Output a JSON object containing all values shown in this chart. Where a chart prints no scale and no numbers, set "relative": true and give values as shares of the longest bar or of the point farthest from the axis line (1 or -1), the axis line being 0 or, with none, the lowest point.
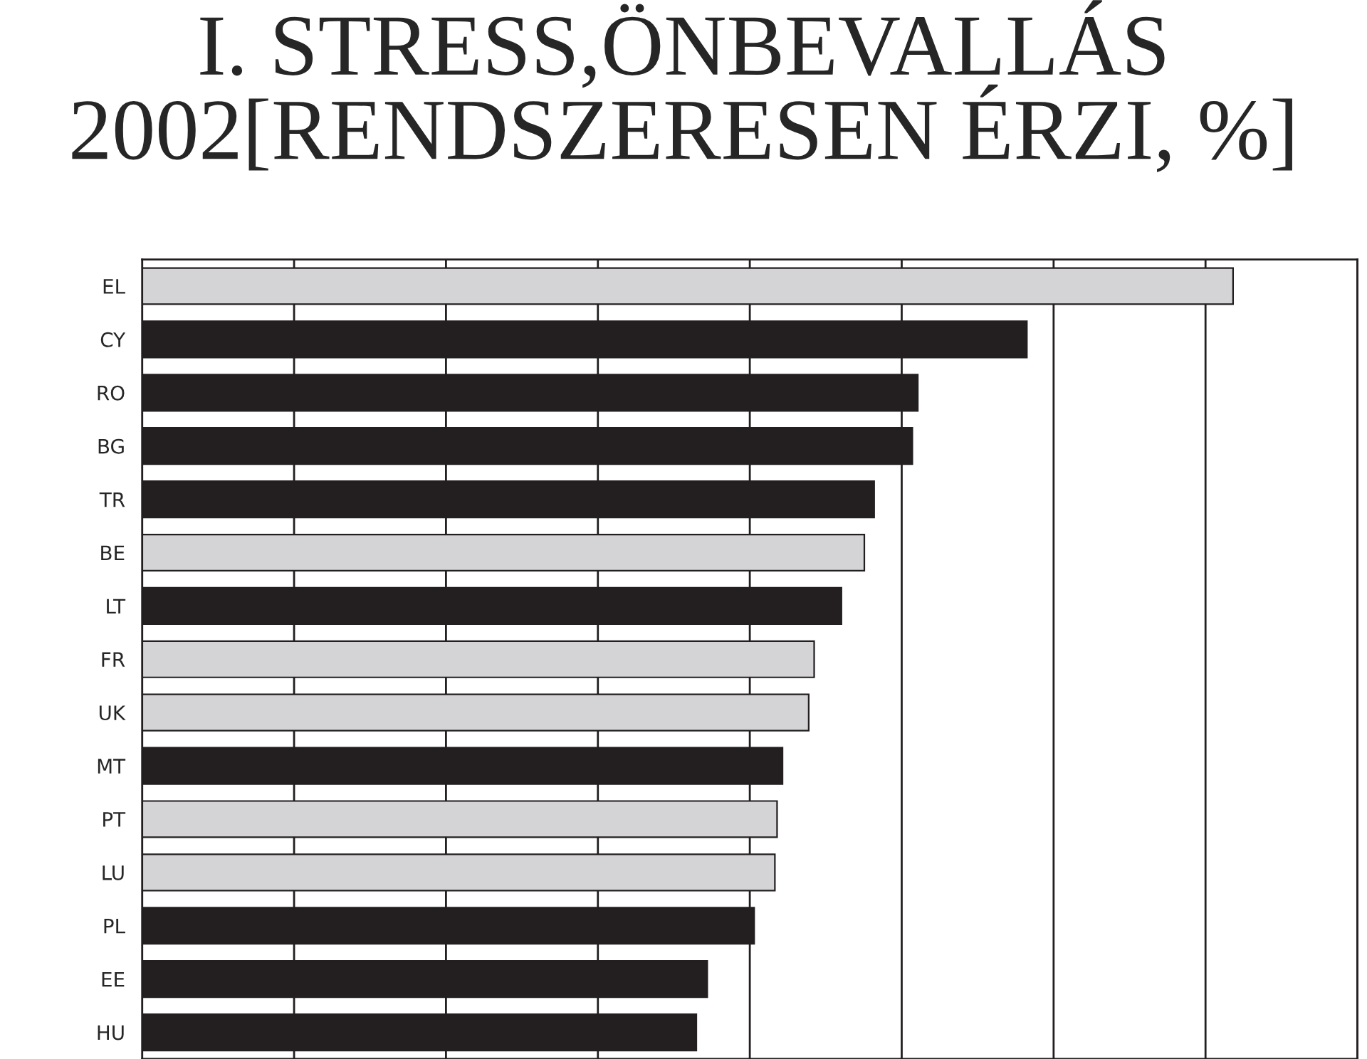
{
  "chart_data": {
    "type": "bar",
    "orientation": "horizontal",
    "relative": true,
    "title": "I. STRESS,ÖNBEVALLÁS\n2002[RENDSZERESEN ÉRZI, %]",
    "categories": [
      "EL",
      "CY",
      "RO",
      "BG",
      "TR",
      "BE",
      "LT",
      "FR",
      "UK",
      "MT",
      "PT",
      "LU",
      "PL",
      "EE",
      "HU"
    ],
    "values": [
      1,
      0.811,
      0.711,
      0.706,
      0.671,
      0.662,
      0.641,
      0.616,
      0.611,
      0.587,
      0.582,
      0.58,
      0.561,
      0.518,
      0.508
    ],
    "colors": [
      "#d4d3d6",
      "#231f20",
      "#231f20",
      "#231f20",
      "#231f20",
      "#d4d3d6",
      "#231f20",
      "#d4d3d6",
      "#d4d3d6",
      "#231f20",
      "#d4d3d6",
      "#d4d3d6",
      "#231f20",
      "#231f20",
      "#231f20"
    ],
    "grid": "x",
    "tick_labels": "y"
  }
}
